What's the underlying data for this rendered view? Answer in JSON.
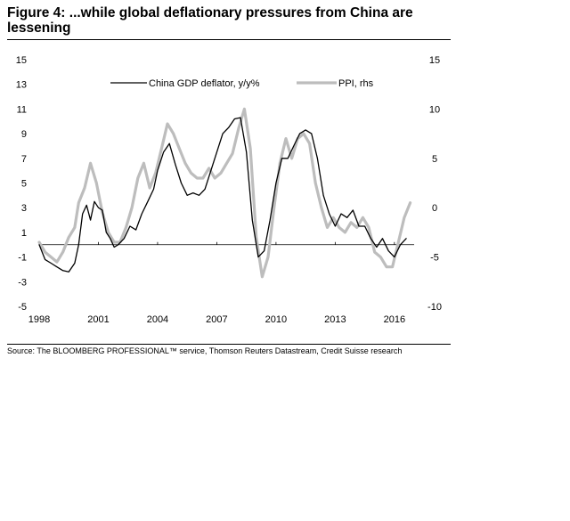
{
  "figure": {
    "title": "Figure 4: ...while global deflationary pressures from China are lessening",
    "source": "Source: The BLOOMBERG PROFESSIONAL™ service, Thomson Reuters Datastream, Credit Suisse research"
  },
  "chart_data": {
    "type": "line",
    "title": "Figure 4: ...while global deflationary pressures from China are lessening",
    "xlabel": "",
    "ylabel": "",
    "xlim": [
      1998.0,
      2017.0
    ],
    "ylim": [
      -5,
      15
    ],
    "y2lim": [
      -10,
      15
    ],
    "x_ticks": [
      1998,
      2001,
      2004,
      2007,
      2010,
      2013,
      2016
    ],
    "y_ticks": [
      15,
      13,
      11,
      9,
      7,
      5,
      3,
      1,
      -1,
      -3,
      -5
    ],
    "y2_ticks": [
      15,
      10,
      5,
      0,
      -5,
      -10
    ],
    "grid": false,
    "zero_line_left": 0,
    "legend_placement": "top",
    "series": [
      {
        "name": "China GDP deflator, y/y%",
        "axis": "left",
        "color": "#000000",
        "x": [
          1998.0,
          1998.3,
          1998.6,
          1998.9,
          1999.2,
          1999.5,
          1999.8,
          2000.0,
          2000.2,
          2000.4,
          2000.6,
          2000.8,
          2001.0,
          2001.2,
          2001.4,
          2001.6,
          2001.8,
          2002.0,
          2002.3,
          2002.6,
          2002.9,
          2003.2,
          2003.5,
          2003.8,
          2004.0,
          2004.3,
          2004.6,
          2004.9,
          2005.2,
          2005.5,
          2005.8,
          2006.1,
          2006.4,
          2006.7,
          2007.0,
          2007.3,
          2007.6,
          2007.9,
          2008.2,
          2008.5,
          2008.8,
          2009.1,
          2009.4,
          2009.7,
          2010.0,
          2010.3,
          2010.6,
          2010.9,
          2011.2,
          2011.5,
          2011.8,
          2012.1,
          2012.4,
          2012.7,
          2013.0,
          2013.3,
          2013.6,
          2013.9,
          2014.2,
          2014.5,
          2014.8,
          2015.1,
          2015.4,
          2015.7,
          2016.0,
          2016.3,
          2016.6
        ],
        "values": [
          0.0,
          -1.2,
          -1.5,
          -1.8,
          -2.1,
          -2.2,
          -1.5,
          0.0,
          2.5,
          3.2,
          2.0,
          3.5,
          3.0,
          2.8,
          1.0,
          0.5,
          -0.2,
          0.0,
          0.5,
          1.5,
          1.2,
          2.5,
          3.5,
          4.5,
          6.0,
          7.5,
          8.2,
          6.5,
          5.0,
          4.0,
          4.2,
          4.0,
          4.5,
          6.0,
          7.5,
          9.0,
          9.5,
          10.2,
          10.3,
          7.5,
          2.0,
          -1.0,
          -0.5,
          2.0,
          5.0,
          7.0,
          7.0,
          8.0,
          9.0,
          9.3,
          9.0,
          7.0,
          4.0,
          2.5,
          1.5,
          2.5,
          2.2,
          2.8,
          1.5,
          1.5,
          0.5,
          -0.2,
          0.5,
          -0.5,
          -1.0,
          0.0,
          0.5
        ]
      },
      {
        "name": "PPI, rhs",
        "axis": "right",
        "color": "#bdbdbd",
        "x": [
          1998.0,
          1998.3,
          1998.6,
          1998.9,
          1999.2,
          1999.5,
          1999.8,
          2000.0,
          2000.3,
          2000.6,
          2000.9,
          2001.2,
          2001.5,
          2001.8,
          2002.1,
          2002.4,
          2002.7,
          2003.0,
          2003.3,
          2003.6,
          2003.9,
          2004.2,
          2004.5,
          2004.8,
          2005.1,
          2005.4,
          2005.7,
          2006.0,
          2006.3,
          2006.6,
          2006.9,
          2007.2,
          2007.5,
          2007.8,
          2008.1,
          2008.4,
          2008.7,
          2009.0,
          2009.3,
          2009.6,
          2009.9,
          2010.2,
          2010.5,
          2010.8,
          2011.1,
          2011.4,
          2011.7,
          2012.0,
          2012.3,
          2012.6,
          2012.9,
          2013.2,
          2013.5,
          2013.8,
          2014.1,
          2014.4,
          2014.7,
          2015.0,
          2015.3,
          2015.6,
          2015.9,
          2016.2,
          2016.5,
          2016.8
        ],
        "values": [
          -3.5,
          -4.5,
          -5.0,
          -5.5,
          -4.5,
          -3.0,
          -2.0,
          0.5,
          2.0,
          4.5,
          2.5,
          -0.5,
          -2.5,
          -3.5,
          -3.5,
          -2.0,
          0.0,
          3.0,
          4.5,
          2.0,
          3.5,
          6.0,
          8.5,
          7.5,
          6.0,
          4.5,
          3.5,
          3.0,
          3.0,
          4.0,
          3.0,
          3.5,
          4.5,
          5.5,
          8.0,
          10.0,
          6.0,
          -3.0,
          -7.0,
          -5.0,
          0.0,
          4.5,
          7.0,
          5.0,
          7.0,
          7.5,
          6.5,
          2.5,
          0.0,
          -2.0,
          -1.0,
          -2.0,
          -2.5,
          -1.5,
          -2.0,
          -1.0,
          -2.0,
          -4.5,
          -5.0,
          -6.0,
          -6.0,
          -3.5,
          -1.0,
          0.5
        ]
      }
    ]
  }
}
